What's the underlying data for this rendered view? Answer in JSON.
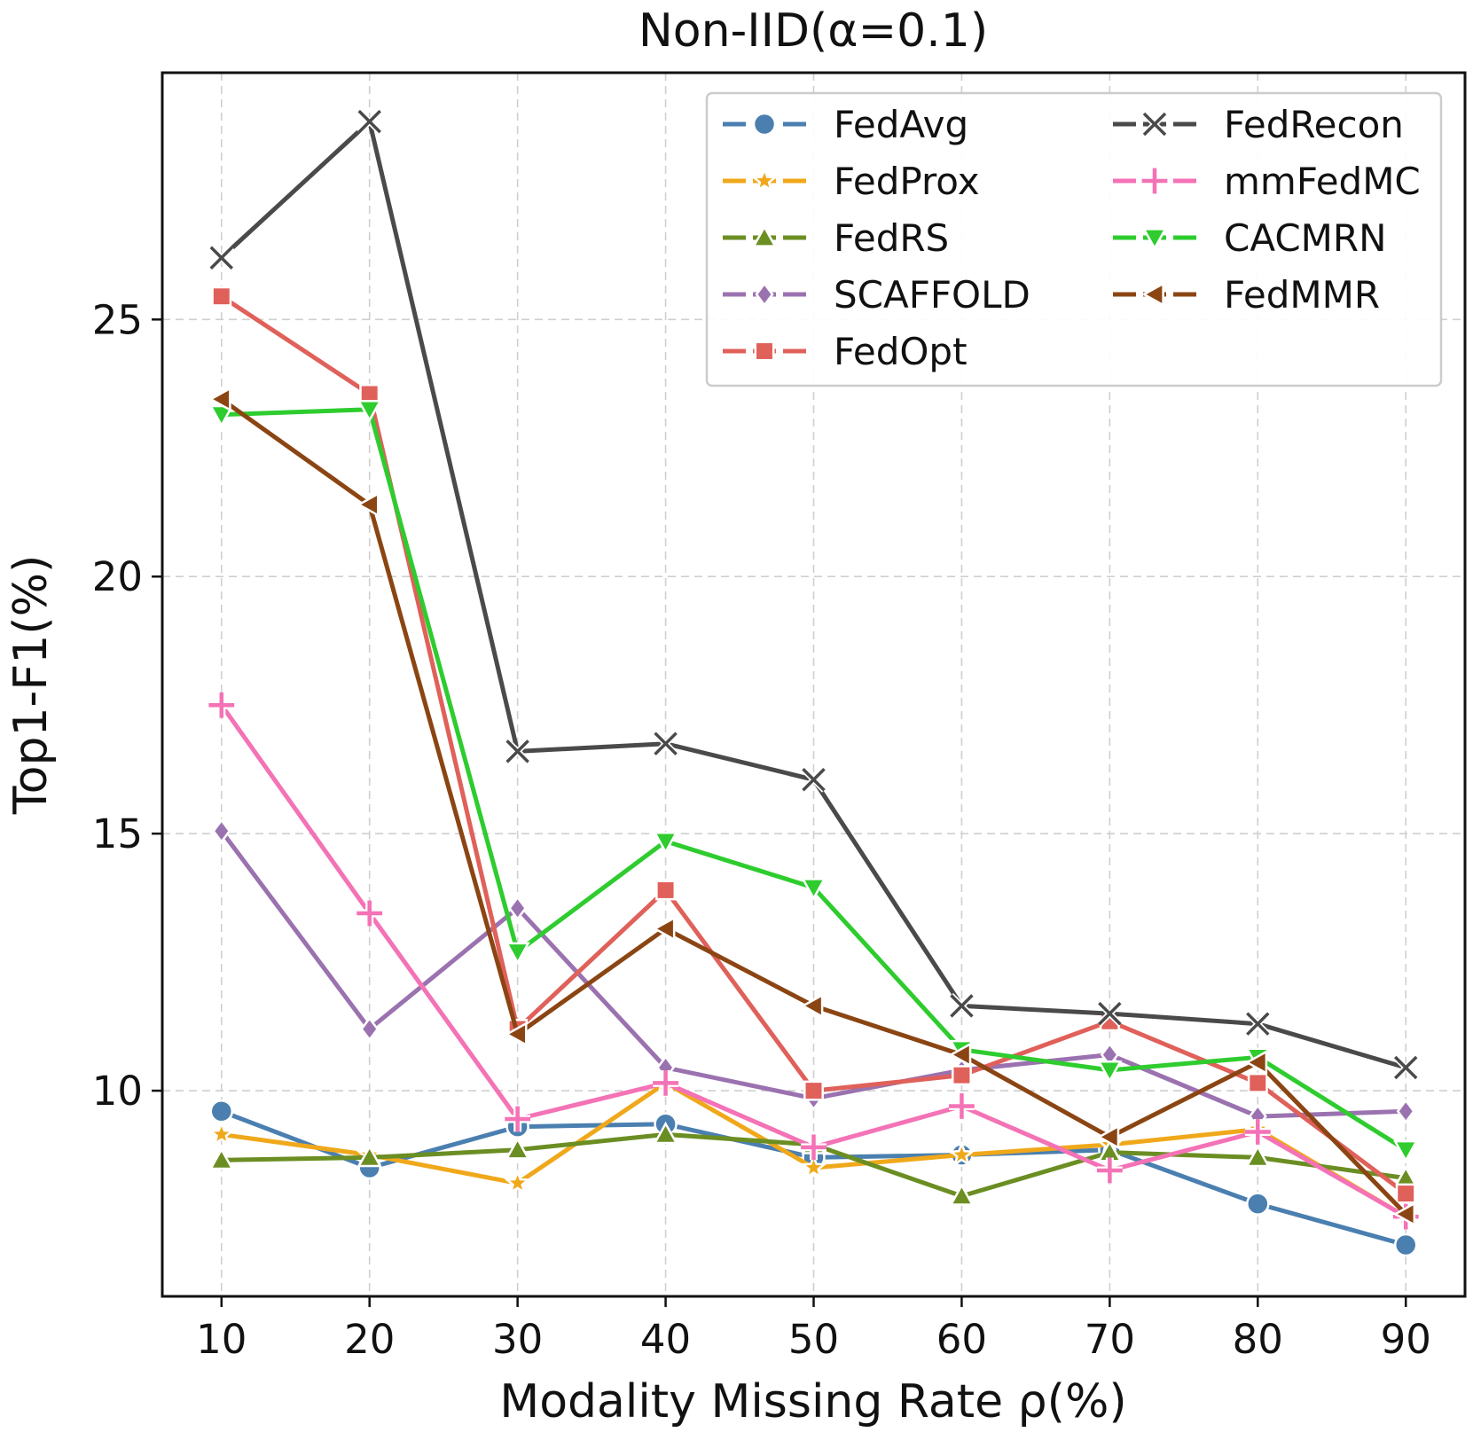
{
  "chart_data": {
    "type": "line",
    "title": "Non-IID(α=0.1)",
    "xlabel": "Modality Missing Rate ρ(%)",
    "ylabel": "Top1-F1(%)",
    "x": [
      10,
      20,
      30,
      40,
      50,
      60,
      70,
      80,
      90
    ],
    "xticks": [
      "10",
      "20",
      "30",
      "40",
      "50",
      "60",
      "70",
      "80",
      "90"
    ],
    "yticks": [
      {
        "value": 10,
        "label": "10"
      },
      {
        "value": 15,
        "label": "15"
      },
      {
        "value": 20,
        "label": "20"
      },
      {
        "value": 25,
        "label": "25"
      }
    ],
    "xlim": [
      6,
      94
    ],
    "ylim": [
      6.0,
      29.8
    ],
    "grid": true,
    "legend_position": "top-right",
    "series": [
      {
        "name": "FedAvg",
        "color": "#4a7fb0",
        "marker": "circle",
        "values": [
          9.6,
          8.5,
          9.3,
          9.35,
          8.7,
          8.75,
          8.85,
          7.8,
          7.0
        ]
      },
      {
        "name": "FedProx",
        "color": "#f0a81b",
        "marker": "star",
        "values": [
          9.15,
          8.75,
          8.2,
          10.15,
          8.5,
          8.75,
          8.95,
          9.25,
          7.55
        ]
      },
      {
        "name": "FedRS",
        "color": "#6b8e23",
        "marker": "triangle-up",
        "values": [
          8.65,
          8.7,
          8.85,
          9.15,
          8.95,
          7.95,
          8.8,
          8.7,
          8.3
        ]
      },
      {
        "name": "SCAFFOLD",
        "color": "#9b72b0",
        "marker": "diamond",
        "values": [
          15.05,
          11.2,
          13.55,
          10.45,
          9.85,
          10.4,
          10.7,
          9.5,
          9.6
        ]
      },
      {
        "name": "FedOpt",
        "color": "#e0605a",
        "marker": "square",
        "values": [
          25.45,
          23.55,
          11.2,
          13.9,
          10.0,
          10.3,
          11.35,
          10.15,
          8.0
        ]
      },
      {
        "name": "FedRecon",
        "color": "#4a4a4a",
        "marker": "x",
        "values": [
          26.2,
          28.85,
          16.6,
          16.75,
          16.05,
          11.65,
          11.5,
          11.3,
          10.45
        ]
      },
      {
        "name": "mmFedMC",
        "color": "#f472b6",
        "marker": "plus",
        "values": [
          17.5,
          13.45,
          9.45,
          10.15,
          8.9,
          9.7,
          8.45,
          9.2,
          7.55
        ]
      },
      {
        "name": "CACMRN",
        "color": "#2ecc2e",
        "marker": "triangle-down",
        "values": [
          23.15,
          23.25,
          12.7,
          14.85,
          13.95,
          10.8,
          10.4,
          10.65,
          8.85
        ]
      },
      {
        "name": "FedMMR",
        "color": "#8b4513",
        "marker": "triangle-left",
        "values": [
          23.45,
          21.4,
          11.1,
          13.15,
          11.65,
          10.7,
          9.1,
          10.55,
          7.6
        ]
      }
    ]
  }
}
